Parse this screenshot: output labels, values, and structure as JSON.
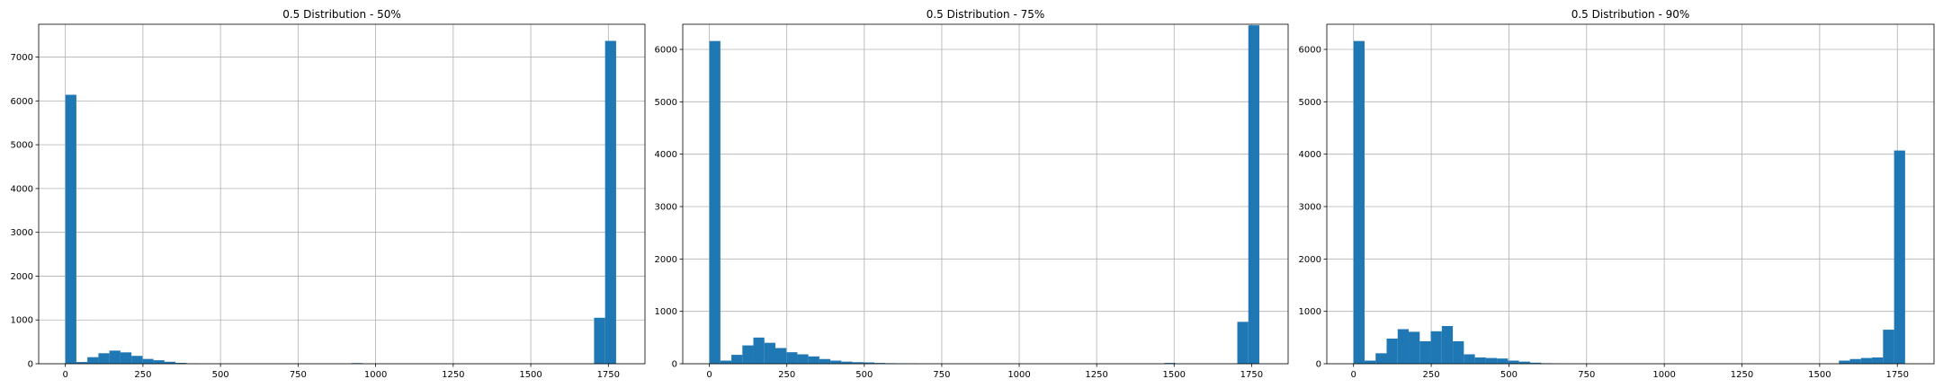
{
  "chart_data": [
    {
      "type": "bar",
      "title": "0.5 Distribution - 50%",
      "xlabel": "",
      "ylabel": "",
      "xlim": [
        -86,
        1868
      ],
      "ylim": [
        0,
        7750
      ],
      "xticks": [
        0,
        250,
        500,
        750,
        1000,
        1250,
        1500,
        1750
      ],
      "yticks": [
        0,
        1000,
        2000,
        3000,
        4000,
        5000,
        6000,
        7000
      ],
      "grid": true,
      "bin_width": 35.5,
      "bins_start": [
        0,
        35.5,
        71,
        106.5,
        142,
        177.5,
        213,
        248.5,
        284,
        319.5,
        355,
        390.5,
        923,
        1704,
        1739.5
      ],
      "values": [
        6140,
        40,
        150,
        240,
        300,
        260,
        180,
        110,
        80,
        45,
        20,
        10,
        15,
        1050,
        7370
      ],
      "color": "#1f77b4"
    },
    {
      "type": "bar",
      "title": "0.5 Distribution - 75%",
      "xlabel": "",
      "ylabel": "",
      "xlim": [
        -86,
        1868
      ],
      "ylim": [
        0,
        6480
      ],
      "xticks": [
        0,
        250,
        500,
        750,
        1000,
        1250,
        1500,
        1750
      ],
      "yticks": [
        0,
        1000,
        2000,
        3000,
        4000,
        5000,
        6000
      ],
      "grid": true,
      "bin_width": 35.5,
      "bins_start": [
        0,
        35.5,
        71,
        106.5,
        142,
        177.5,
        213,
        248.5,
        284,
        319.5,
        355,
        390.5,
        426,
        461.5,
        497,
        532.5,
        568,
        603.5,
        639,
        1469,
        1704,
        1739.5
      ],
      "values": [
        6160,
        60,
        170,
        350,
        500,
        400,
        300,
        220,
        180,
        140,
        90,
        60,
        40,
        30,
        25,
        15,
        10,
        8,
        5,
        15,
        800,
        6460
      ],
      "color": "#1f77b4"
    },
    {
      "type": "bar",
      "title": "0.5 Distribution - 90%",
      "xlabel": "",
      "ylabel": "",
      "xlim": [
        -86,
        1868
      ],
      "ylim": [
        0,
        6480
      ],
      "xticks": [
        0,
        250,
        500,
        750,
        1000,
        1250,
        1500,
        1750
      ],
      "yticks": [
        0,
        1000,
        2000,
        3000,
        4000,
        5000,
        6000
      ],
      "grid": true,
      "bin_width": 35.5,
      "bins_start": [
        0,
        35.5,
        71,
        106.5,
        142,
        177.5,
        213,
        248.5,
        284,
        319.5,
        355,
        390.5,
        426,
        461.5,
        497,
        532.5,
        568,
        603.5,
        639,
        1562,
        1597.5,
        1633,
        1668.5,
        1704,
        1739.5
      ],
      "values": [
        6160,
        60,
        200,
        480,
        660,
        610,
        430,
        620,
        720,
        430,
        180,
        120,
        110,
        100,
        60,
        40,
        20,
        10,
        5,
        60,
        90,
        110,
        120,
        650,
        4070
      ],
      "color": "#1f77b4"
    }
  ]
}
